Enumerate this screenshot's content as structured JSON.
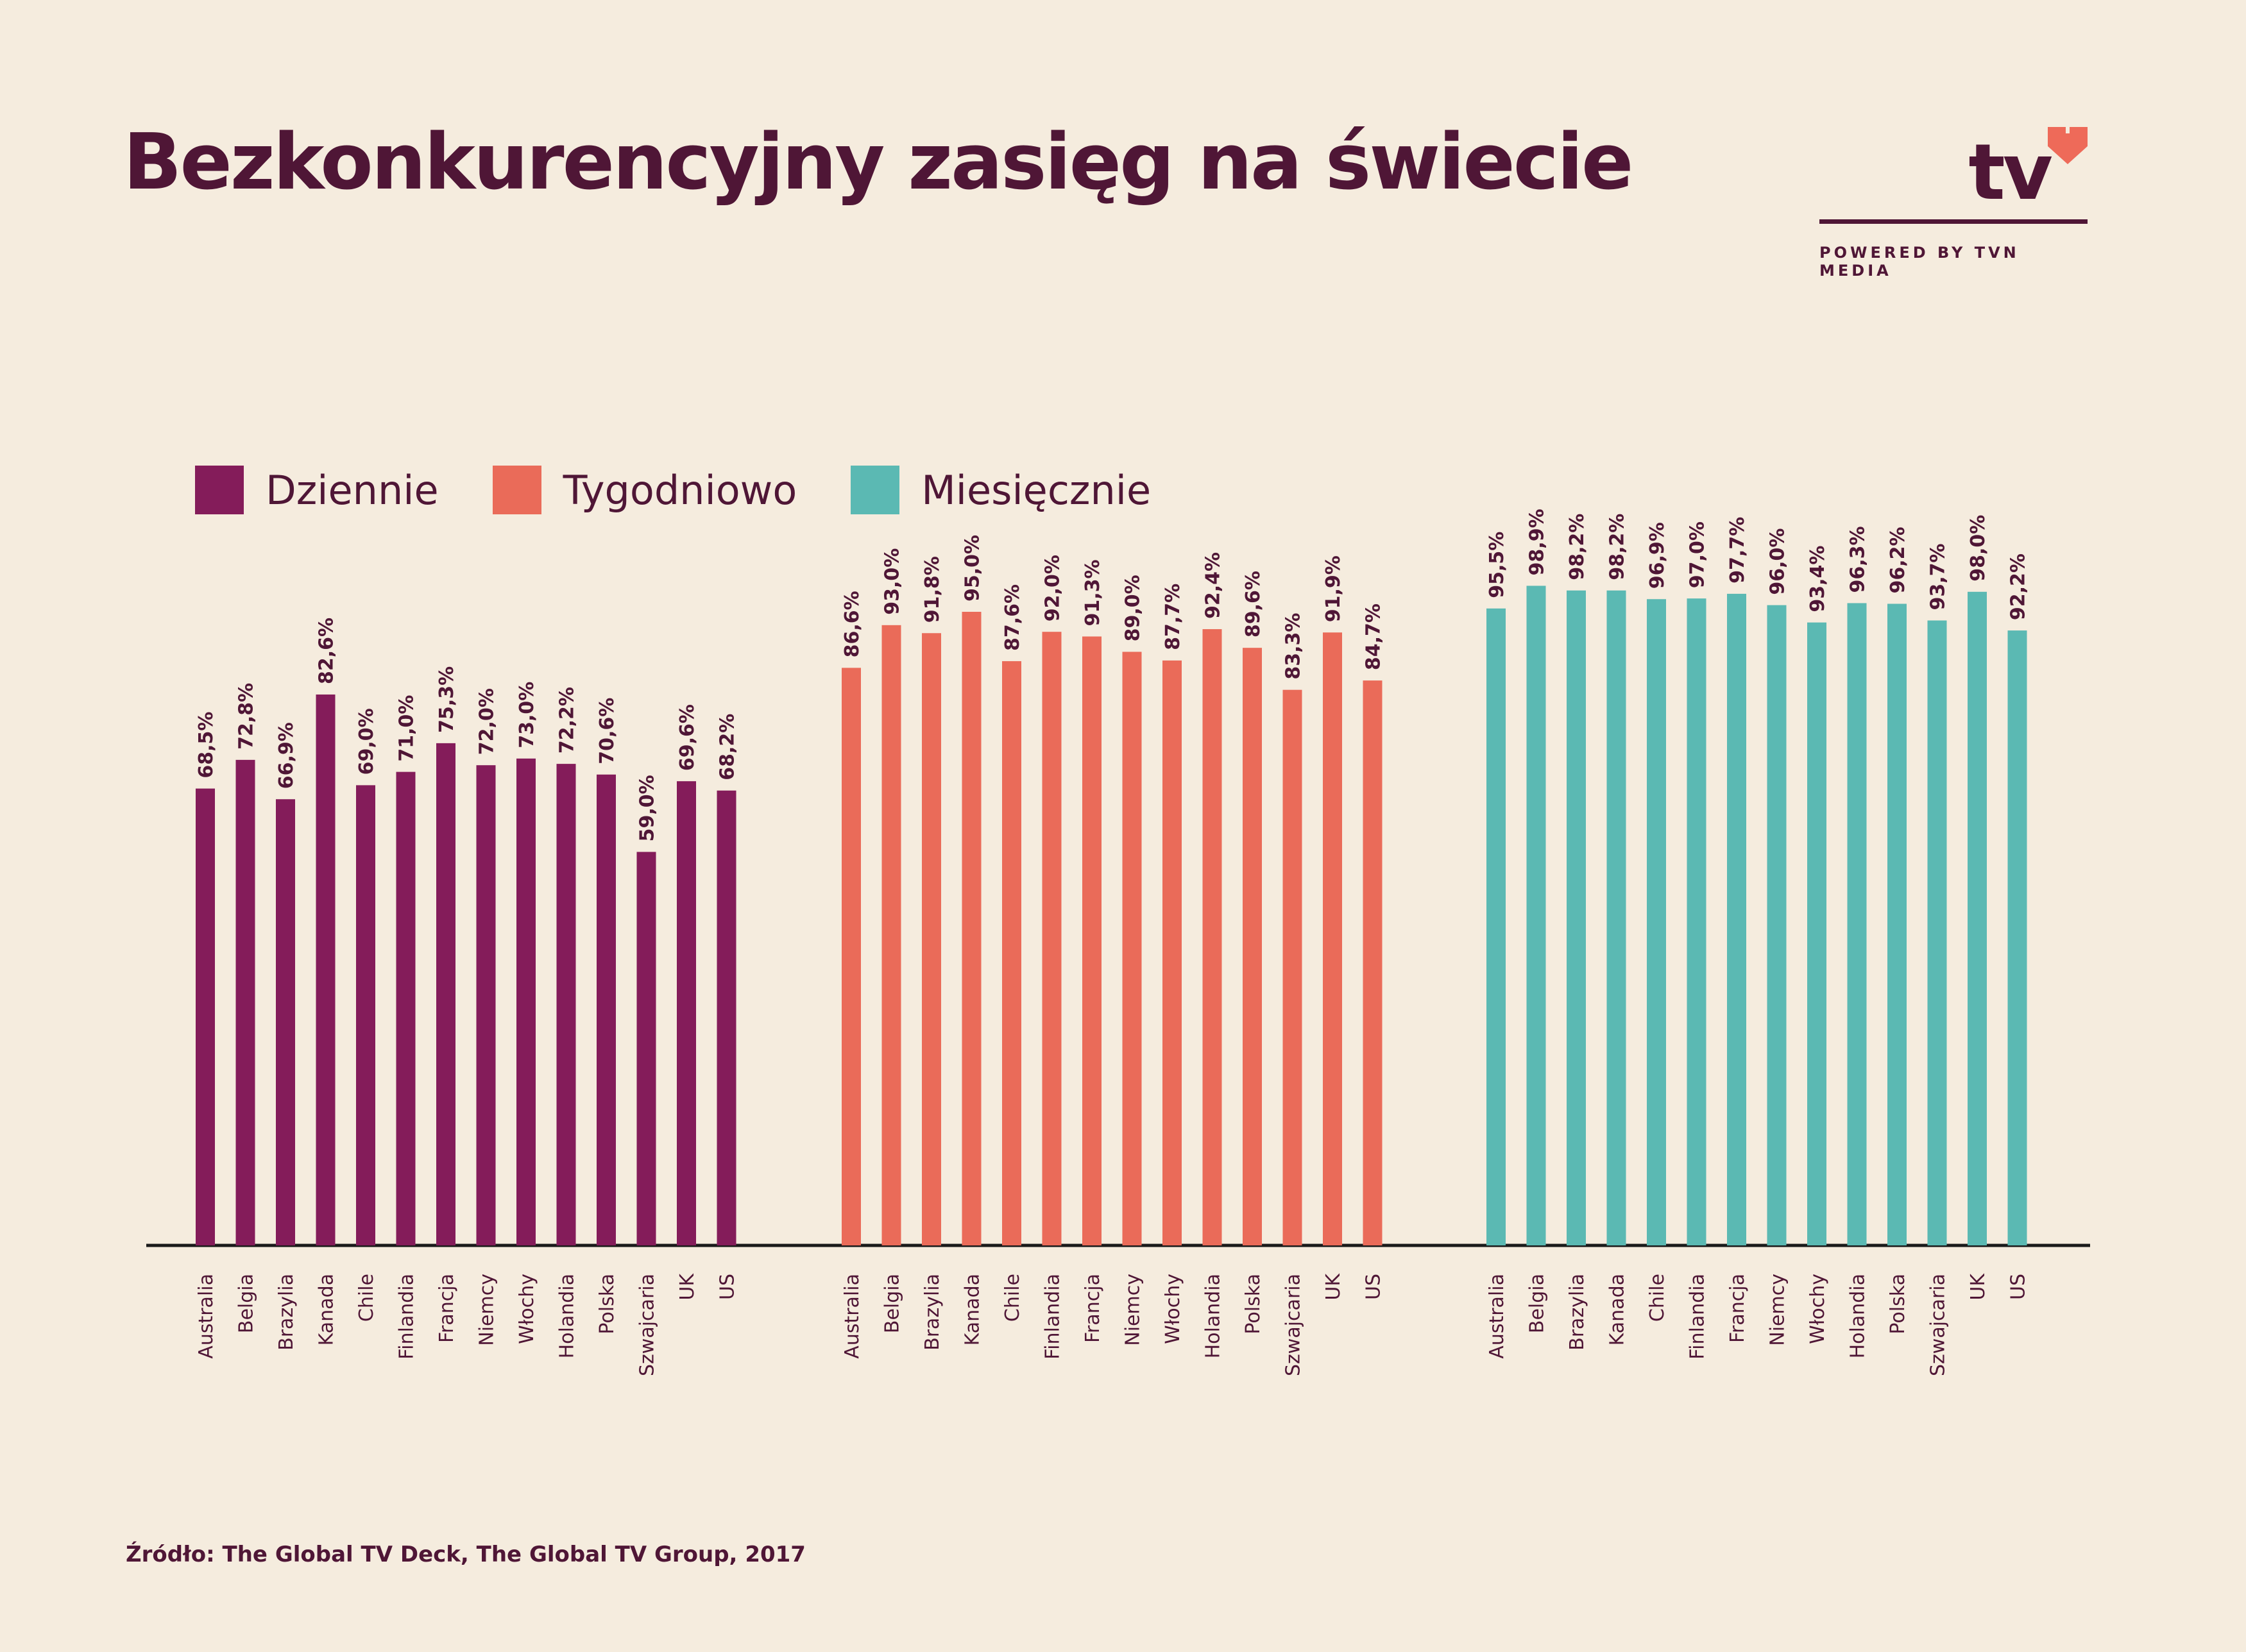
{
  "title": "Bezkonkurencyjny zasięg na świecie",
  "logo": {
    "text": "tv",
    "tagline": "POWERED BY TVN MEDIA",
    "heart_color": "#ee6a59"
  },
  "legend": [
    {
      "label": "Dziennie",
      "color": "#841c5a"
    },
    {
      "label": "Tygodniowo",
      "color": "#ea6b59"
    },
    {
      "label": "Miesięcznie",
      "color": "#5bb9b3"
    }
  ],
  "source": "Źródło: The Global TV Deck, The Global TV Group, 2017",
  "chart_data": {
    "type": "bar",
    "categories": [
      "Australia",
      "Belgia",
      "Brazylia",
      "Kanada",
      "Chile",
      "Finlandia",
      "Francja",
      "Niemcy",
      "Włochy",
      "Holandia",
      "Polska",
      "Szwajcaria",
      "UK",
      "US"
    ],
    "value_labels": {
      "Dziennie": [
        "68,5%",
        "72,8%",
        "66,9%",
        "82,6%",
        "69,0%",
        "71,0%",
        "75,3%",
        "72,0%",
        "73,0%",
        "72,2%",
        "70,6%",
        "59,0%",
        "69,6%",
        "68,2%"
      ],
      "Tygodniowo": [
        "86,6%",
        "93,0%",
        "91,8%",
        "95,0%",
        "87,6%",
        "92,0%",
        "91,3%",
        "89,0%",
        "87,7%",
        "92,4%",
        "89,6%",
        "83,3%",
        "91,9%",
        "84,7%"
      ],
      "Miesięcznie": [
        "95,5%",
        "98,9%",
        "98,2%",
        "98,2%",
        "96,9%",
        "97,0%",
        "97,7%",
        "96,0%",
        "93,4%",
        "96,3%",
        "96,2%",
        "93,7%",
        "98,0%",
        "92,2%"
      ]
    },
    "series": [
      {
        "name": "Dziennie",
        "color": "#841c5a",
        "values": [
          68.5,
          72.8,
          66.9,
          82.6,
          69.0,
          71.0,
          75.3,
          72.0,
          73.0,
          72.2,
          70.6,
          59.0,
          69.6,
          68.2
        ]
      },
      {
        "name": "Tygodniowo",
        "color": "#ea6b59",
        "values": [
          86.6,
          93.0,
          91.8,
          95.0,
          87.6,
          92.0,
          91.3,
          89.0,
          87.7,
          92.4,
          89.6,
          83.3,
          91.9,
          84.7
        ]
      },
      {
        "name": "Miesięcznie",
        "color": "#5bb9b3",
        "values": [
          95.5,
          98.9,
          98.2,
          98.2,
          96.9,
          97.0,
          97.7,
          96.0,
          93.4,
          96.3,
          96.2,
          93.7,
          98.0,
          92.2
        ]
      }
    ],
    "ylim": [
      0,
      100
    ],
    "grid": false,
    "legend_position": "top-left"
  }
}
